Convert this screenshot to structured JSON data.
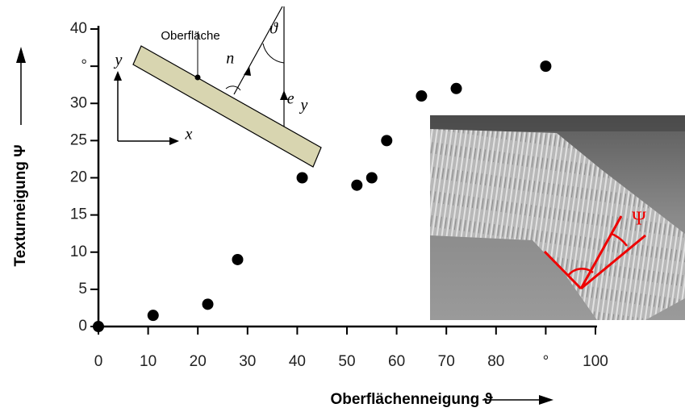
{
  "chart_data": {
    "type": "scatter",
    "xlabel": "Oberflächenneigung ϑ",
    "ylabel": "Texturneigung Ψ",
    "x": [
      0,
      11,
      22,
      28,
      41,
      52,
      55,
      58,
      65,
      72,
      90
    ],
    "values": [
      0,
      1.5,
      3,
      9,
      20,
      19,
      20,
      25,
      31,
      32,
      35
    ],
    "color": "#000000",
    "xlim": [
      0,
      100
    ],
    "ylim": [
      0,
      40
    ],
    "xticks": [
      0,
      10,
      20,
      30,
      40,
      50,
      60,
      70,
      80,
      {
        "value": 90,
        "label": "°"
      },
      100
    ],
    "yticks": [
      0,
      5,
      10,
      15,
      20,
      25,
      30,
      {
        "value": 35,
        "label": "°"
      },
      40
    ],
    "inset_labels": {
      "surface": "Oberfläche",
      "y_axis": "y",
      "x_axis": "x",
      "normal": "n⃗",
      "angle": "ϑ",
      "ey": "e⃗",
      "ey_sub": "y",
      "psi": "Ψ"
    }
  }
}
